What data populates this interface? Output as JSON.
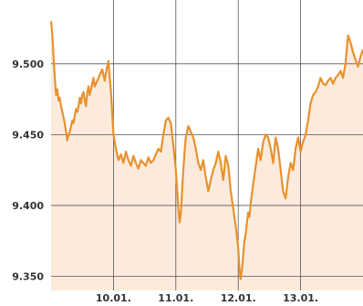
{
  "chart_data": {
    "type": "area",
    "title": "",
    "xlabel": "",
    "ylabel": "",
    "y_ticks": [
      "9.500",
      "9.450",
      "9.400",
      "9.350"
    ],
    "y_tick_values": [
      9500,
      9450,
      9400,
      9350
    ],
    "x_ticks": [
      "10.01.",
      "11.01.",
      "12.01.",
      "13.01."
    ],
    "x_tick_values": [
      1,
      2,
      3,
      4
    ],
    "xlim": [
      0,
      5
    ],
    "ylim": [
      9340,
      9545
    ],
    "grid": true,
    "colors": {
      "line": "#e8912e",
      "fill": "#fbe8d6",
      "grid": "#555555"
    },
    "series": [
      {
        "x": [
          0.0,
          0.02,
          0.04,
          0.06,
          0.08,
          0.1,
          0.12,
          0.14,
          0.16,
          0.18,
          0.2,
          0.22,
          0.24,
          0.26,
          0.28,
          0.3,
          0.32,
          0.34,
          0.36,
          0.38,
          0.4,
          0.42,
          0.44,
          0.46,
          0.48,
          0.5,
          0.52,
          0.54,
          0.56,
          0.58,
          0.6,
          0.62,
          0.64,
          0.66,
          0.68,
          0.7,
          0.72,
          0.74,
          0.76,
          0.78,
          0.8,
          0.82,
          0.84,
          0.86,
          0.88,
          0.9,
          0.92,
          0.94,
          0.96,
          0.98,
          1.0,
          1.04,
          1.08,
          1.12,
          1.16,
          1.2,
          1.24,
          1.28,
          1.32,
          1.36,
          1.4,
          1.44,
          1.48,
          1.52,
          1.56,
          1.6,
          1.64,
          1.68,
          1.72,
          1.76,
          1.8,
          1.84,
          1.88,
          1.92,
          1.96,
          2.0,
          2.02,
          2.04,
          2.06,
          2.08,
          2.1,
          2.12,
          2.14,
          2.16,
          2.18,
          2.2,
          2.24,
          2.28,
          2.32,
          2.36,
          2.4,
          2.44,
          2.48,
          2.52,
          2.56,
          2.6,
          2.64,
          2.68,
          2.72,
          2.76,
          2.8,
          2.84,
          2.88,
          2.92,
          2.96,
          3.0,
          3.02,
          3.04,
          3.06,
          3.08,
          3.1,
          3.12,
          3.14,
          3.16,
          3.18,
          3.2,
          3.24,
          3.28,
          3.32,
          3.36,
          3.4,
          3.44,
          3.48,
          3.52,
          3.56,
          3.6,
          3.64,
          3.68,
          3.72,
          3.76,
          3.8,
          3.84,
          3.88,
          3.92,
          3.96,
          4.0,
          4.04,
          4.08,
          4.12,
          4.16,
          4.2,
          4.24,
          4.28,
          4.32,
          4.36,
          4.4,
          4.44,
          4.48,
          4.52,
          4.56,
          4.6,
          4.64,
          4.68,
          4.72,
          4.76,
          4.8,
          4.84,
          4.88,
          4.92,
          4.96,
          5.0
        ],
        "values": [
          9530,
          9520,
          9505,
          9490,
          9478,
          9482,
          9474,
          9476,
          9470,
          9466,
          9462,
          9458,
          9452,
          9446,
          9450,
          9452,
          9456,
          9460,
          9458,
          9464,
          9468,
          9466,
          9470,
          9476,
          9472,
          9478,
          9480,
          9474,
          9470,
          9480,
          9484,
          9478,
          9482,
          9486,
          9490,
          9484,
          9486,
          9488,
          9490,
          9492,
          9494,
          9496,
          9492,
          9488,
          9494,
          9498,
          9502,
          9490,
          9480,
          9465,
          9450,
          9440,
          9432,
          9436,
          9430,
          9438,
          9432,
          9428,
          9435,
          9430,
          9426,
          9432,
          9430,
          9428,
          9434,
          9430,
          9432,
          9436,
          9440,
          9438,
          9450,
          9460,
          9462,
          9458,
          9442,
          9425,
          9412,
          9398,
          9388,
          9395,
          9410,
          9425,
          9438,
          9448,
          9452,
          9456,
          9452,
          9448,
          9440,
          9430,
          9425,
          9432,
          9420,
          9410,
          9418,
          9425,
          9430,
          9438,
          9430,
          9418,
          9435,
          9428,
          9410,
          9398,
          9385,
          9370,
          9355,
          9348,
          9355,
          9365,
          9375,
          9380,
          9388,
          9395,
          9392,
          9402,
          9415,
          9428,
          9440,
          9432,
          9445,
          9450,
          9448,
          9440,
          9430,
          9448,
          9440,
          9425,
          9410,
          9405,
          9420,
          9430,
          9425,
          9440,
          9448,
          9438,
          9445,
          9450,
          9460,
          9472,
          9478,
          9480,
          9484,
          9490,
          9486,
          9485,
          9488,
          9490,
          9486,
          9490,
          9492,
          9495,
          9490,
          9500,
          9520,
          9515,
          9508,
          9503,
          9498,
          9505,
          9510
        ]
      }
    ]
  }
}
